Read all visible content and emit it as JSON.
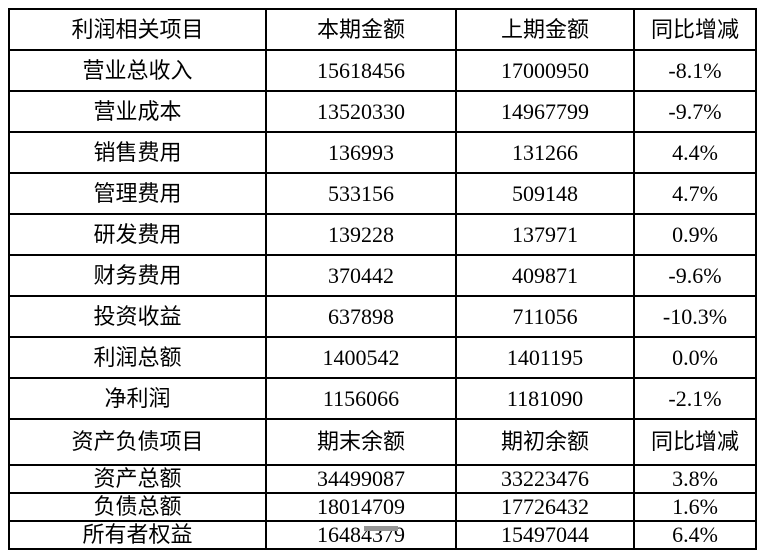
{
  "table": {
    "text_color": "#000000",
    "border_color": "#000000",
    "background": "#ffffff",
    "sections": [
      {
        "header": {
          "item": "利润相关项目",
          "current": "本期金额",
          "prior": "上期金额",
          "yoy": "同比增减"
        },
        "rows": [
          {
            "item": "营业总收入",
            "current": "15618456",
            "prior": "17000950",
            "yoy": "-8.1%"
          },
          {
            "item": "营业成本",
            "current": "13520330",
            "prior": "14967799",
            "yoy": "-9.7%"
          },
          {
            "item": "销售费用",
            "current": "136993",
            "prior": "131266",
            "yoy": "4.4%"
          },
          {
            "item": "管理费用",
            "current": "533156",
            "prior": "509148",
            "yoy": "4.7%"
          },
          {
            "item": "研发费用",
            "current": "139228",
            "prior": "137971",
            "yoy": "0.9%"
          },
          {
            "item": "财务费用",
            "current": "370442",
            "prior": "409871",
            "yoy": "-9.6%"
          },
          {
            "item": "投资收益",
            "current": "637898",
            "prior": "711056",
            "yoy": "-10.3%"
          },
          {
            "item": "利润总额",
            "current": "1400542",
            "prior": "1401195",
            "yoy": "0.0%"
          },
          {
            "item": "净利润",
            "current": "1156066",
            "prior": "1181090",
            "yoy": "-2.1%"
          }
        ]
      },
      {
        "header": {
          "item": "资产负债项目",
          "current": "期末余额",
          "prior": "期初余额",
          "yoy": "同比增减"
        },
        "rows": [
          {
            "item": "资产总额",
            "current": "34499087",
            "prior": "33223476",
            "yoy": "3.8%"
          },
          {
            "item": "负债总额",
            "current": "18014709",
            "prior": "17726432",
            "yoy": "1.6%"
          },
          {
            "item": "所有者权益",
            "current": "16484379",
            "prior": "15497044",
            "yoy": "6.4%"
          }
        ]
      }
    ]
  }
}
